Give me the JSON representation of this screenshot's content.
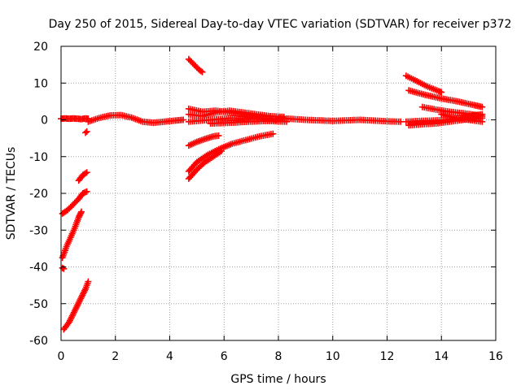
{
  "chart_data": {
    "type": "scatter",
    "title": "Day 250 of 2015, Sidereal Day-to-day VTEC variation (SDTVAR) for receiver p372",
    "xlabel": "GPS time / hours",
    "ylabel": "SDTVAR / TECUs",
    "xlim": [
      0,
      16
    ],
    "ylim": [
      -60,
      20
    ],
    "x_ticks": [
      0,
      2,
      4,
      6,
      8,
      10,
      12,
      14,
      16
    ],
    "y_ticks": [
      -60,
      -50,
      -40,
      -30,
      -20,
      -10,
      0,
      10,
      20
    ],
    "x_tick_labels": [
      "0",
      "2",
      "4",
      "6",
      "8",
      "10",
      "12",
      "14",
      "16"
    ],
    "y_tick_labels": [
      "-60",
      "-50",
      "-40",
      "-30",
      "-20",
      "-10",
      "0",
      "10",
      "20"
    ],
    "grid": true,
    "marker": "+",
    "color": "#ff0000",
    "series": [
      {
        "x": [
          0.0,
          0.15,
          0.3,
          0.45,
          0.6,
          0.75,
          0.9,
          1.0
        ],
        "y": [
          0.3,
          0.4,
          0.3,
          0.4,
          0.3,
          0.2,
          0.4,
          0.3
        ]
      },
      {
        "x": [
          1.0,
          1.4,
          1.8,
          2.2,
          2.6,
          3.0,
          3.4,
          3.8,
          4.2,
          4.5
        ],
        "y": [
          -0.5,
          0.5,
          1.2,
          1.3,
          0.6,
          -0.5,
          -0.8,
          -0.5,
          -0.2,
          0.0
        ]
      },
      {
        "x": [
          0.05,
          0.25,
          0.45,
          0.65,
          0.8,
          0.95
        ],
        "y": [
          -25.5,
          -24.5,
          -23.0,
          -21.5,
          -20.0,
          -19.5
        ]
      },
      {
        "x": [
          0.05,
          0.2,
          0.35,
          0.5,
          0.65,
          0.75
        ],
        "y": [
          -37.5,
          -34.5,
          -32.0,
          -29.5,
          -26.5,
          -25.0
        ]
      },
      {
        "x": [
          0.05,
          0.1
        ],
        "y": [
          -40.3,
          -40.5
        ]
      },
      {
        "x": [
          0.1,
          0.3,
          0.5,
          0.7,
          0.9,
          1.0
        ],
        "y": [
          -57.0,
          -55.0,
          -52.0,
          -49.0,
          -46.0,
          -44.0
        ]
      },
      {
        "x": [
          0.65,
          0.8,
          0.95
        ],
        "y": [
          -16.5,
          -15.0,
          -14.3
        ]
      },
      {
        "x": [
          0.9,
          0.95
        ],
        "y": [
          -3.5,
          -3.2
        ]
      },
      {
        "x": [
          4.7,
          4.9,
          5.1,
          5.2
        ],
        "y": [
          16.5,
          15.0,
          13.5,
          13.0
        ]
      },
      {
        "x": [
          4.7,
          5.0,
          5.3,
          5.6,
          5.8
        ],
        "y": [
          -7.0,
          -6.0,
          -5.2,
          -4.5,
          -4.3
        ]
      },
      {
        "x": [
          4.7,
          5.0,
          5.4,
          5.8,
          6.3,
          6.8,
          7.3,
          7.8
        ],
        "y": [
          -14.0,
          -11.5,
          -9.5,
          -8.0,
          -6.5,
          -5.5,
          -4.5,
          -3.8
        ]
      },
      {
        "x": [
          4.7,
          5.0,
          5.3,
          5.6,
          5.9
        ],
        "y": [
          -16.0,
          -13.5,
          -11.5,
          -10.0,
          -8.5
        ]
      },
      {
        "x": [
          4.7,
          5.2,
          5.7,
          6.2,
          6.7,
          7.2,
          7.7
        ],
        "y": [
          3.0,
          2.2,
          2.5,
          2.0,
          1.5,
          1.0,
          1.0
        ]
      },
      {
        "x": [
          4.7,
          5.2,
          5.7,
          6.2,
          6.7,
          7.2,
          7.7,
          8.2
        ],
        "y": [
          1.5,
          1.0,
          2.0,
          2.5,
          2.0,
          1.5,
          1.0,
          0.8
        ]
      },
      {
        "x": [
          4.7,
          5.5,
          6.3,
          7.1,
          7.9
        ],
        "y": [
          -0.5,
          0.0,
          0.5,
          0.2,
          0.0
        ]
      },
      {
        "x": [
          5.5,
          6.2,
          6.9,
          7.6,
          8.3
        ],
        "y": [
          -1.0,
          -0.8,
          -0.5,
          -0.3,
          -0.5
        ]
      },
      {
        "x": [
          8.0,
          9.0,
          10.0,
          11.0,
          12.0,
          12.5
        ],
        "y": [
          0.5,
          0.0,
          -0.3,
          0.0,
          -0.4,
          -0.5
        ]
      },
      {
        "x": [
          12.7,
          13.1,
          13.5,
          13.9,
          14.0
        ],
        "y": [
          12.0,
          10.5,
          9.0,
          7.8,
          7.5
        ]
      },
      {
        "x": [
          12.8,
          13.4,
          14.0,
          14.6,
          15.2,
          15.5
        ],
        "y": [
          8.0,
          6.8,
          5.8,
          5.0,
          4.0,
          3.5
        ]
      },
      {
        "x": [
          13.3,
          13.8,
          14.3,
          14.8,
          15.3,
          15.5
        ],
        "y": [
          3.5,
          2.8,
          2.2,
          1.8,
          1.3,
          1.0
        ]
      },
      {
        "x": [
          12.7,
          13.2,
          13.7,
          14.2,
          14.7,
          15.2,
          15.5
        ],
        "y": [
          -0.5,
          -0.3,
          -0.2,
          0.0,
          0.5,
          1.2,
          1.5
        ]
      },
      {
        "x": [
          12.8,
          13.3,
          13.8,
          14.3,
          14.8,
          15.3,
          15.5
        ],
        "y": [
          -1.5,
          -1.2,
          -1.0,
          -0.5,
          0.0,
          0.3,
          0.5
        ]
      },
      {
        "x": [
          14.0,
          14.5,
          15.0,
          15.5
        ],
        "y": [
          1.5,
          0.5,
          0.0,
          -0.5
        ]
      }
    ]
  }
}
